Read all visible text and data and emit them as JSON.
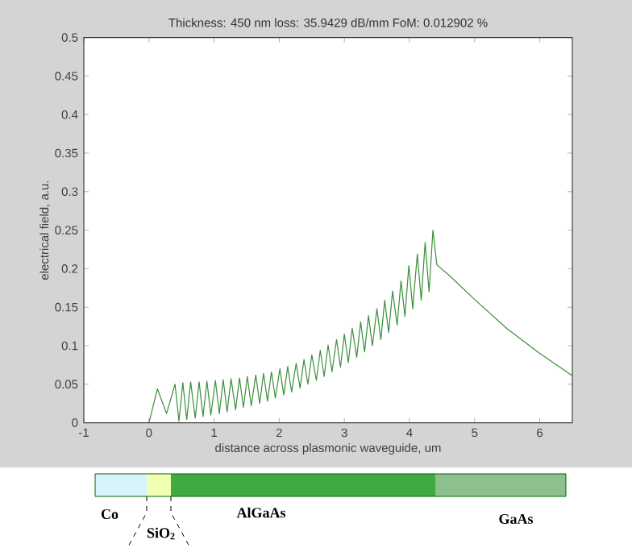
{
  "chart_data": {
    "type": "line",
    "title": "Thickness: 450 nm loss: 35.9429 dB/mm FoM: 0.012902 %",
    "xlabel": "distance across plasmonic waveguide, um",
    "ylabel": "electrical field, a.u.",
    "xlim": [
      -1,
      6.5
    ],
    "ylim": [
      0,
      0.5
    ],
    "xticks": [
      -1,
      0,
      1,
      2,
      3,
      4,
      5,
      6
    ],
    "yticks": [
      0,
      0.05,
      0.1,
      0.15,
      0.2,
      0.25,
      0.3,
      0.35,
      0.4,
      0.45,
      0.5
    ],
    "grid": false,
    "marker": "none",
    "annotations": [
      "Co",
      "SiO$_{2}$",
      "AlGaAs",
      "GaAs"
    ],
    "series": [
      {
        "color": "#3a8f3a",
        "x": [
          0,
          0.13,
          0.27,
          0.4,
          0.46,
          0.52,
          0.58,
          0.64,
          0.71,
          0.77,
          0.83,
          0.89,
          0.95,
          1.02,
          1.08,
          1.14,
          1.2,
          1.26,
          1.33,
          1.39,
          1.45,
          1.51,
          1.57,
          1.64,
          1.7,
          1.76,
          1.82,
          1.88,
          1.94,
          2.01,
          2.07,
          2.13,
          2.19,
          2.26,
          2.32,
          2.38,
          2.44,
          2.5,
          2.57,
          2.63,
          2.69,
          2.75,
          2.81,
          2.88,
          2.94,
          3.0,
          3.06,
          3.12,
          3.19,
          3.25,
          3.31,
          3.37,
          3.43,
          3.5,
          3.56,
          3.62,
          3.68,
          3.74,
          3.81,
          3.87,
          3.93,
          3.99,
          4.05,
          4.12,
          4.18,
          4.24,
          4.3,
          4.36,
          4.42,
          4.6,
          5,
          5.5,
          6,
          6.5
        ],
        "values": [
          0,
          0.044,
          0.012,
          0.05,
          0.002,
          0.052,
          0.004,
          0.053,
          0.006,
          0.053,
          0.008,
          0.054,
          0.01,
          0.055,
          0.012,
          0.056,
          0.014,
          0.057,
          0.017,
          0.058,
          0.02,
          0.06,
          0.022,
          0.062,
          0.025,
          0.064,
          0.028,
          0.066,
          0.032,
          0.07,
          0.036,
          0.073,
          0.04,
          0.077,
          0.045,
          0.082,
          0.05,
          0.088,
          0.055,
          0.094,
          0.06,
          0.101,
          0.066,
          0.108,
          0.072,
          0.115,
          0.078,
          0.123,
          0.085,
          0.131,
          0.092,
          0.139,
          0.1,
          0.148,
          0.108,
          0.159,
          0.117,
          0.171,
          0.127,
          0.184,
          0.138,
          0.204,
          0.148,
          0.219,
          0.159,
          0.234,
          0.17,
          0.25,
          0.205,
          0.192,
          0.16,
          0.122,
          0.09,
          0.061
        ]
      }
    ]
  }
}
